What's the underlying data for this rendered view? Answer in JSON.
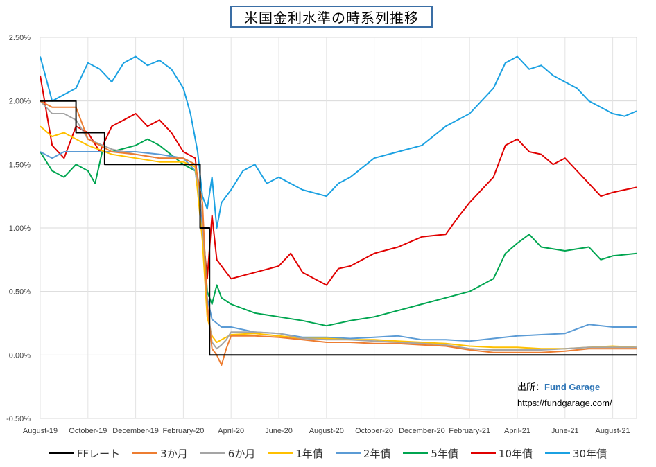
{
  "title": "米国金利水準の時系列推移",
  "source": {
    "label": "出所：",
    "name": "Fund Garage",
    "url": "https://fundgarage.com/"
  },
  "chart_data": {
    "type": "line",
    "ylim": [
      -0.5,
      2.5
    ],
    "yticks": [
      "-0.50%",
      "0.00%",
      "0.50%",
      "1.00%",
      "1.50%",
      "2.00%",
      "2.50%"
    ],
    "ytick_values": [
      -0.5,
      0.0,
      0.5,
      1.0,
      1.5,
      2.0,
      2.5
    ],
    "xlim": [
      0,
      25
    ],
    "xticks": [
      "August-19",
      "October-19",
      "December-19",
      "February-20",
      "April-20",
      "June-20",
      "August-20",
      "October-20",
      "December-20",
      "February-21",
      "April-21",
      "June-21",
      "August-21"
    ],
    "xtick_values": [
      0,
      2,
      4,
      6,
      8,
      10,
      12,
      14,
      16,
      18,
      20,
      22,
      24
    ],
    "grid": true,
    "legend": "bottom",
    "series": [
      {
        "name": "FFレート",
        "color": "#000000",
        "step": true,
        "x": [
          0,
          1.5,
          1.5,
          2.7,
          2.7,
          6.7,
          6.7,
          7.1,
          7.1,
          7.4,
          7.4,
          25
        ],
        "y": [
          2.0,
          2.0,
          1.75,
          1.75,
          1.5,
          1.5,
          1.0,
          1.0,
          0.0,
          0.0,
          0.0,
          0.0
        ]
      },
      {
        "name": "3か月",
        "color": "#ed7d31",
        "x": [
          0,
          0.5,
          1.0,
          1.5,
          2.0,
          2.5,
          3.0,
          4.0,
          5.0,
          6.0,
          6.5,
          6.8,
          7.0,
          7.2,
          7.4,
          7.6,
          7.8,
          8.0,
          9.0,
          10.0,
          11.0,
          12.0,
          13.0,
          14.0,
          15.0,
          16.0,
          17.0,
          18.0,
          19.0,
          20.0,
          21.0,
          22.0,
          23.0,
          24.0,
          25.0
        ],
        "y": [
          2.0,
          1.95,
          1.95,
          1.95,
          1.7,
          1.65,
          1.6,
          1.58,
          1.55,
          1.55,
          1.5,
          1.2,
          0.4,
          0.05,
          0.0,
          -0.08,
          0.05,
          0.15,
          0.15,
          0.14,
          0.12,
          0.1,
          0.1,
          0.09,
          0.09,
          0.08,
          0.07,
          0.04,
          0.02,
          0.02,
          0.02,
          0.03,
          0.05,
          0.05,
          0.05
        ]
      },
      {
        "name": "6か月",
        "color": "#a5a5a5",
        "x": [
          0,
          0.5,
          1.0,
          1.5,
          2.0,
          3.0,
          4.0,
          5.0,
          6.0,
          6.5,
          6.8,
          7.0,
          7.2,
          7.4,
          7.6,
          7.8,
          8.0,
          9.0,
          10.0,
          11.0,
          12.0,
          13.0,
          14.0,
          15.0,
          16.0,
          17.0,
          18.0,
          19.0,
          20.0,
          21.0,
          22.0,
          23.0,
          24.0,
          25.0
        ],
        "y": [
          2.0,
          1.9,
          1.9,
          1.85,
          1.7,
          1.62,
          1.58,
          1.55,
          1.55,
          1.5,
          1.1,
          0.4,
          0.1,
          0.05,
          0.08,
          0.12,
          0.18,
          0.18,
          0.17,
          0.13,
          0.12,
          0.12,
          0.11,
          0.1,
          0.09,
          0.08,
          0.05,
          0.04,
          0.04,
          0.04,
          0.05,
          0.06,
          0.06,
          0.06
        ]
      },
      {
        "name": "1年債",
        "color": "#ffc000",
        "x": [
          0,
          0.5,
          1.0,
          1.5,
          2.0,
          3.0,
          4.0,
          5.0,
          6.0,
          6.5,
          6.8,
          7.0,
          7.2,
          7.4,
          7.6,
          8.0,
          9.0,
          10.0,
          11.0,
          12.0,
          13.0,
          14.0,
          15.0,
          16.0,
          17.0,
          18.0,
          19.0,
          20.0,
          21.0,
          22.0,
          23.0,
          24.0,
          25.0
        ],
        "y": [
          1.8,
          1.72,
          1.75,
          1.7,
          1.65,
          1.58,
          1.55,
          1.52,
          1.52,
          1.48,
          0.9,
          0.3,
          0.15,
          0.1,
          0.12,
          0.16,
          0.17,
          0.15,
          0.13,
          0.13,
          0.12,
          0.12,
          0.11,
          0.1,
          0.09,
          0.07,
          0.06,
          0.06,
          0.05,
          0.05,
          0.06,
          0.07,
          0.06
        ]
      },
      {
        "name": "2年債",
        "color": "#5b9bd5",
        "x": [
          0,
          0.5,
          1.0,
          1.5,
          2.0,
          3.0,
          4.0,
          5.0,
          6.0,
          6.5,
          6.8,
          7.0,
          7.2,
          7.4,
          7.6,
          8.0,
          9.0,
          10.0,
          11.0,
          12.0,
          13.0,
          14.0,
          15.0,
          16.0,
          17.0,
          18.0,
          19.0,
          20.0,
          21.0,
          22.0,
          23.0,
          24.0,
          25.0
        ],
        "y": [
          1.6,
          1.55,
          1.6,
          1.6,
          1.6,
          1.6,
          1.6,
          1.58,
          1.55,
          1.45,
          1.0,
          0.45,
          0.28,
          0.25,
          0.22,
          0.22,
          0.18,
          0.17,
          0.14,
          0.14,
          0.13,
          0.14,
          0.15,
          0.12,
          0.12,
          0.11,
          0.13,
          0.15,
          0.16,
          0.17,
          0.24,
          0.22,
          0.22
        ]
      },
      {
        "name": "5年債",
        "color": "#00a550",
        "x": [
          0,
          0.5,
          1.0,
          1.5,
          2.0,
          2.3,
          2.6,
          3.0,
          4.0,
          4.5,
          5.0,
          6.0,
          6.5,
          6.8,
          7.0,
          7.2,
          7.4,
          7.6,
          8.0,
          9.0,
          10.0,
          11.0,
          12.0,
          13.0,
          14.0,
          15.0,
          16.0,
          17.0,
          18.0,
          19.0,
          19.5,
          20.0,
          20.5,
          21.0,
          22.0,
          23.0,
          23.5,
          24.0,
          25.0
        ],
        "y": [
          1.6,
          1.45,
          1.4,
          1.5,
          1.45,
          1.35,
          1.6,
          1.6,
          1.65,
          1.7,
          1.65,
          1.5,
          1.45,
          1.1,
          0.5,
          0.4,
          0.55,
          0.45,
          0.4,
          0.33,
          0.3,
          0.27,
          0.23,
          0.27,
          0.3,
          0.35,
          0.4,
          0.45,
          0.5,
          0.6,
          0.8,
          0.88,
          0.95,
          0.85,
          0.82,
          0.85,
          0.75,
          0.78,
          0.8
        ]
      },
      {
        "name": "10年債",
        "color": "#e00000",
        "x": [
          0,
          0.5,
          1.0,
          1.5,
          2.0,
          2.5,
          3.0,
          3.5,
          4.0,
          4.5,
          5.0,
          5.5,
          6.0,
          6.5,
          6.8,
          7.0,
          7.2,
          7.4,
          7.6,
          8.0,
          9.0,
          10.0,
          10.5,
          11.0,
          12.0,
          12.5,
          13.0,
          14.0,
          15.0,
          16.0,
          17.0,
          17.5,
          18.0,
          19.0,
          19.5,
          20.0,
          20.5,
          21.0,
          21.5,
          22.0,
          22.5,
          23.0,
          23.5,
          24.0,
          24.5,
          25.0
        ],
        "y": [
          2.2,
          1.65,
          1.55,
          1.8,
          1.75,
          1.6,
          1.8,
          1.85,
          1.9,
          1.8,
          1.85,
          1.75,
          1.6,
          1.55,
          1.0,
          0.6,
          1.1,
          0.75,
          0.7,
          0.6,
          0.65,
          0.7,
          0.8,
          0.65,
          0.55,
          0.68,
          0.7,
          0.8,
          0.85,
          0.93,
          0.95,
          1.08,
          1.2,
          1.4,
          1.65,
          1.7,
          1.6,
          1.58,
          1.5,
          1.55,
          1.45,
          1.35,
          1.25,
          1.28,
          1.3,
          1.32
        ]
      },
      {
        "name": "30年債",
        "color": "#1ba1e2",
        "x": [
          0,
          0.5,
          1.0,
          1.5,
          2.0,
          2.5,
          3.0,
          3.5,
          4.0,
          4.5,
          5.0,
          5.5,
          6.0,
          6.3,
          6.6,
          6.8,
          7.0,
          7.2,
          7.4,
          7.6,
          8.0,
          8.5,
          9.0,
          9.5,
          10.0,
          11.0,
          12.0,
          12.5,
          13.0,
          14.0,
          15.0,
          16.0,
          17.0,
          18.0,
          19.0,
          19.5,
          20.0,
          20.5,
          21.0,
          21.5,
          22.0,
          22.5,
          23.0,
          23.5,
          24.0,
          24.5,
          25.0
        ],
        "y": [
          2.35,
          2.0,
          2.05,
          2.1,
          2.3,
          2.25,
          2.15,
          2.3,
          2.35,
          2.28,
          2.32,
          2.25,
          2.1,
          1.9,
          1.6,
          1.25,
          1.15,
          1.4,
          1.0,
          1.2,
          1.3,
          1.45,
          1.5,
          1.35,
          1.4,
          1.3,
          1.25,
          1.35,
          1.4,
          1.55,
          1.6,
          1.65,
          1.8,
          1.9,
          2.1,
          2.3,
          2.35,
          2.25,
          2.28,
          2.2,
          2.15,
          2.1,
          2.0,
          1.95,
          1.9,
          1.88,
          1.92
        ]
      }
    ]
  }
}
